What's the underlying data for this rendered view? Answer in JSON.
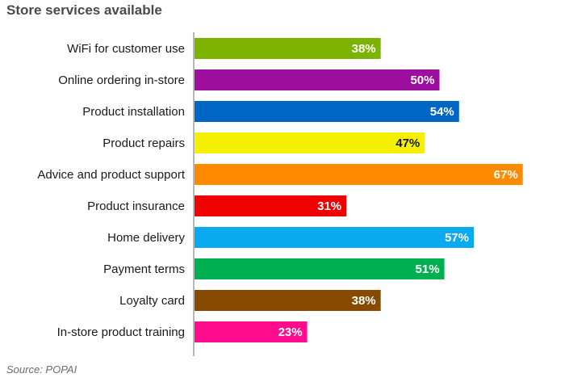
{
  "chart_data": {
    "type": "bar",
    "orientation": "horizontal",
    "title": "Store services available",
    "source": "Source: POPAI",
    "xlim": [
      0,
      100
    ],
    "categories": [
      "WiFi for customer use",
      "Online ordering in-store",
      "Product installation",
      "Product repairs",
      "Advice and product support",
      "Product insurance",
      "Home delivery",
      "Payment terms",
      "Loyalty card",
      "In-store product training"
    ],
    "values": [
      38,
      50,
      54,
      47,
      67,
      31,
      57,
      51,
      38,
      23
    ],
    "value_labels": [
      "38%",
      "50%",
      "54%",
      "47%",
      "67%",
      "31%",
      "57%",
      "51%",
      "38%",
      "23%"
    ],
    "colors": [
      "#7cb300",
      "#9c0e9e",
      "#0066c4",
      "#f5f000",
      "#ff8a00",
      "#f00000",
      "#0aaaf0",
      "#00b050",
      "#864b00",
      "#ff0d8c"
    ],
    "label_colors": [
      "#ffffff",
      "#ffffff",
      "#ffffff",
      "#1a1a1a",
      "#ffffff",
      "#ffffff",
      "#ffffff",
      "#ffffff",
      "#ffffff",
      "#ffffff"
    ],
    "grid": false
  }
}
